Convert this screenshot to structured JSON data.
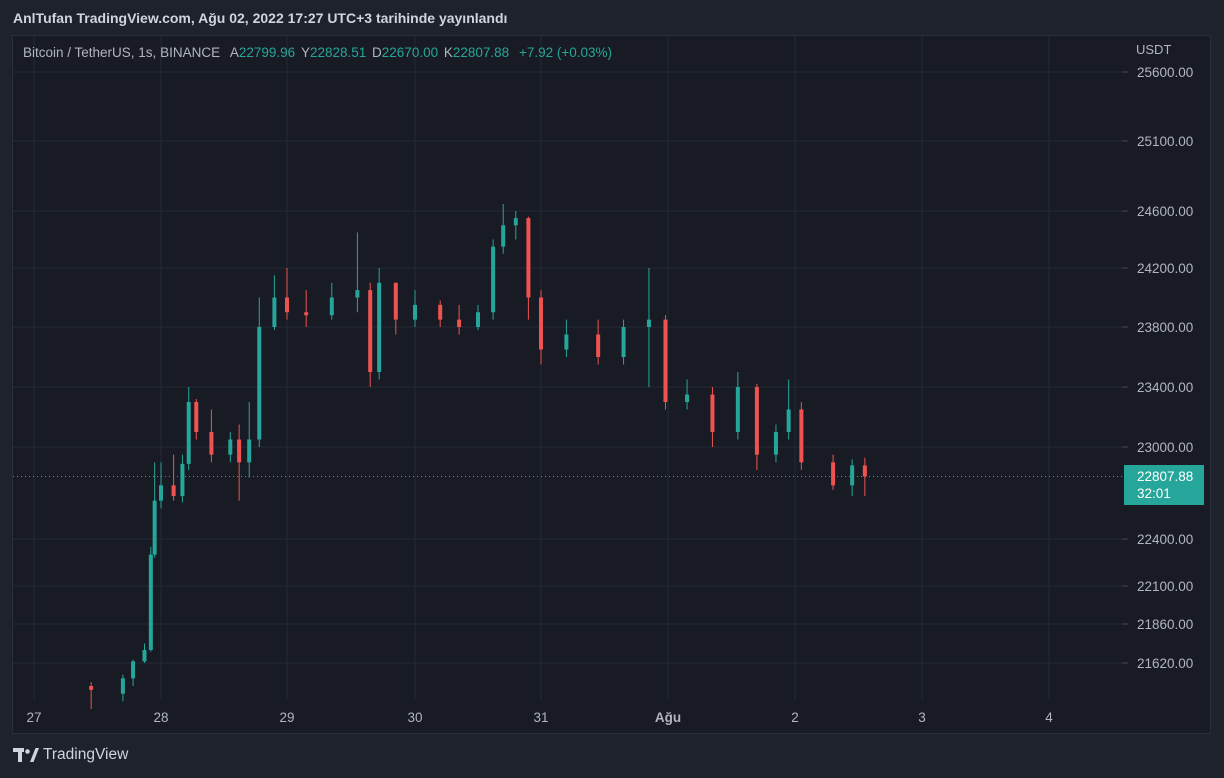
{
  "header": {
    "title": "AnlTufan TradingView.com, Ağu 02, 2022 17:27 UTC+3 tarihinde yayınlandı"
  },
  "legend": {
    "symbol": "Bitcoin / TetherUS, 1s, BINANCE",
    "open_label": "A",
    "open": "22799.96",
    "high_label": "Y",
    "high": "22828.51",
    "low_label": "D",
    "low": "22670.00",
    "close_label": "K",
    "close": "22807.88",
    "change": "+7.92 (+0.03%)"
  },
  "price_axis": {
    "currency": "USDT",
    "ticks": [
      "25600.00",
      "25100.00",
      "24600.00",
      "24200.00",
      "23800.00",
      "23400.00",
      "23000.00",
      "22400.00",
      "22100.00",
      "21860.00",
      "21620.00"
    ]
  },
  "time_axis": {
    "ticks": [
      "27",
      "28",
      "29",
      "30",
      "31",
      "Ağu",
      "2",
      "3",
      "4"
    ]
  },
  "last_price": {
    "price": "22807.88",
    "countdown": "32:01"
  },
  "footer": {
    "brand": "TradingView"
  },
  "colors": {
    "up": "#26a69a",
    "down": "#ef5350",
    "grid": "#242833",
    "background": "#181b24",
    "text": "#b2b5be"
  },
  "icons": {
    "logo": "tradingview-logo-icon"
  },
  "chart_data": {
    "type": "candlestick",
    "title": "Bitcoin / TetherUS, 1s, BINANCE",
    "x_axis": [
      "27",
      "28",
      "29",
      "30",
      "31",
      "Ağu",
      "2",
      "3",
      "4"
    ],
    "ylabel": "USDT",
    "y_ticks": [
      25600,
      25100,
      24600,
      24200,
      23800,
      23400,
      23000,
      22400,
      22100,
      21860,
      21620
    ],
    "grid": true,
    "last_price": 22807.88,
    "candles_approx": [
      {
        "t": "27.45",
        "o": 21560,
        "h": 21570,
        "l": 21500,
        "c": 21550
      },
      {
        "t": "27.70",
        "o": 21540,
        "h": 21590,
        "l": 21520,
        "c": 21580
      },
      {
        "t": "27.78",
        "o": 21580,
        "h": 21640,
        "l": 21560,
        "c": 21630
      },
      {
        "t": "27.87",
        "o": 21630,
        "h": 21740,
        "l": 21620,
        "c": 21700
      },
      {
        "t": "27.92",
        "o": 21700,
        "h": 22350,
        "l": 21690,
        "c": 22300
      },
      {
        "t": "27.95",
        "o": 22300,
        "h": 22900,
        "l": 22280,
        "c": 22650
      },
      {
        "t": "28.00",
        "o": 22650,
        "h": 22900,
        "l": 22600,
        "c": 22750
      },
      {
        "t": "28.10",
        "o": 22750,
        "h": 22950,
        "l": 22650,
        "c": 22680
      },
      {
        "t": "28.17",
        "o": 22680,
        "h": 22950,
        "l": 22640,
        "c": 22890
      },
      {
        "t": "28.22",
        "o": 22890,
        "h": 23400,
        "l": 22850,
        "c": 23300
      },
      {
        "t": "28.28",
        "o": 23300,
        "h": 23320,
        "l": 23050,
        "c": 23100
      },
      {
        "t": "28.40",
        "o": 23100,
        "h": 23250,
        "l": 22900,
        "c": 22950
      },
      {
        "t": "28.55",
        "o": 22950,
        "h": 23100,
        "l": 22900,
        "c": 23050
      },
      {
        "t": "28.62",
        "o": 23050,
        "h": 23150,
        "l": 22650,
        "c": 22900
      },
      {
        "t": "28.70",
        "o": 22900,
        "h": 23300,
        "l": 22800,
        "c": 23050
      },
      {
        "t": "28.78",
        "o": 23050,
        "h": 24000,
        "l": 23000,
        "c": 23800
      },
      {
        "t": "28.90",
        "o": 23800,
        "h": 24150,
        "l": 23780,
        "c": 24000
      },
      {
        "t": "29.00",
        "o": 24000,
        "h": 24200,
        "l": 23850,
        "c": 23900
      },
      {
        "t": "29.15",
        "o": 23900,
        "h": 24050,
        "l": 23800,
        "c": 23880
      },
      {
        "t": "29.35",
        "o": 23880,
        "h": 24100,
        "l": 23850,
        "c": 24000
      },
      {
        "t": "29.55",
        "o": 24000,
        "h": 24450,
        "l": 23900,
        "c": 24050
      },
      {
        "t": "29.65",
        "o": 24050,
        "h": 24100,
        "l": 23400,
        "c": 23500
      },
      {
        "t": "29.72",
        "o": 23500,
        "h": 24200,
        "l": 23450,
        "c": 24100
      },
      {
        "t": "29.85",
        "o": 24100,
        "h": 24100,
        "l": 23750,
        "c": 23850
      },
      {
        "t": "30.00",
        "o": 23850,
        "h": 24050,
        "l": 23800,
        "c": 23950
      },
      {
        "t": "30.20",
        "o": 23950,
        "h": 23980,
        "l": 23800,
        "c": 23850
      },
      {
        "t": "30.35",
        "o": 23850,
        "h": 23950,
        "l": 23750,
        "c": 23800
      },
      {
        "t": "30.50",
        "o": 23800,
        "h": 23950,
        "l": 23780,
        "c": 23900
      },
      {
        "t": "30.62",
        "o": 23900,
        "h": 24400,
        "l": 23850,
        "c": 24350
      },
      {
        "t": "30.70",
        "o": 24350,
        "h": 24650,
        "l": 24300,
        "c": 24500
      },
      {
        "t": "30.80",
        "o": 24500,
        "h": 24600,
        "l": 24400,
        "c": 24550
      },
      {
        "t": "30.90",
        "o": 24550,
        "h": 24560,
        "l": 23850,
        "c": 24000
      },
      {
        "t": "31.00",
        "o": 24000,
        "h": 24050,
        "l": 23550,
        "c": 23650
      },
      {
        "t": "31.20",
        "o": 23650,
        "h": 23850,
        "l": 23600,
        "c": 23750
      },
      {
        "t": "31.45",
        "o": 23750,
        "h": 23850,
        "l": 23550,
        "c": 23600
      },
      {
        "t": "31.65",
        "o": 23600,
        "h": 23850,
        "l": 23550,
        "c": 23800
      },
      {
        "t": "31.85",
        "o": 23800,
        "h": 24200,
        "l": 23400,
        "c": 23850
      },
      {
        "t": "31.98",
        "o": 23850,
        "h": 23880,
        "l": 23250,
        "c": 23300
      },
      {
        "t": "32.15",
        "o": 23300,
        "h": 23450,
        "l": 23250,
        "c": 23350
      },
      {
        "t": "32.35",
        "o": 23350,
        "h": 23400,
        "l": 23000,
        "c": 23100
      },
      {
        "t": "32.55",
        "o": 23100,
        "h": 23500,
        "l": 23050,
        "c": 23400
      },
      {
        "t": "32.70",
        "o": 23400,
        "h": 23420,
        "l": 22850,
        "c": 22950
      },
      {
        "t": "32.85",
        "o": 22950,
        "h": 23150,
        "l": 22900,
        "c": 23100
      },
      {
        "t": "32.95",
        "o": 23100,
        "h": 23450,
        "l": 23050,
        "c": 23250
      },
      {
        "t": "33.05",
        "o": 23250,
        "h": 23300,
        "l": 22850,
        "c": 22900
      },
      {
        "t": "33.30",
        "o": 22900,
        "h": 22950,
        "l": 22720,
        "c": 22750
      },
      {
        "t": "33.45",
        "o": 22750,
        "h": 22920,
        "l": 22680,
        "c": 22880
      },
      {
        "t": "33.55",
        "o": 22880,
        "h": 22930,
        "l": 22680,
        "c": 22808
      }
    ]
  }
}
